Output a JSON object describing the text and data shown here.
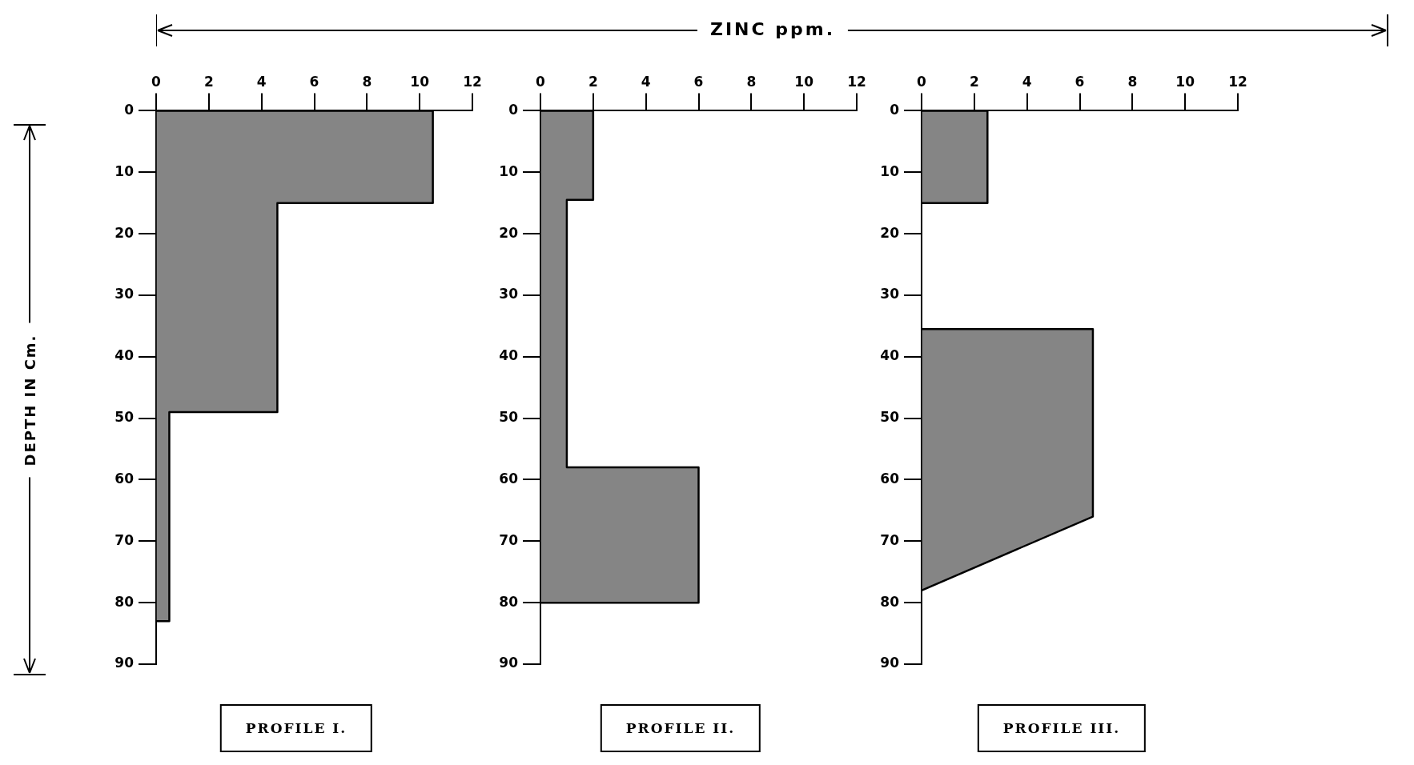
{
  "chart_data": [
    {
      "type": "area",
      "title": "PROFILE I.",
      "ylabel": "DEPTH IN Cm.",
      "xlim": [
        0,
        12
      ],
      "xticks": [
        0,
        2,
        4,
        6,
        8,
        10,
        12
      ],
      "ylim": [
        90,
        0
      ],
      "yticks": [
        0,
        10,
        20,
        30,
        40,
        50,
        60,
        70,
        80,
        90
      ],
      "grid": false,
      "marker": "none",
      "series": [
        {
          "color": "#333333",
          "x": [
            0,
            10.5,
            10.5,
            4.6,
            4.6,
            0.5,
            0.5,
            0
          ],
          "values": [
            0,
            0,
            15,
            15,
            49,
            49,
            83,
            83
          ]
        }
      ]
    },
    {
      "type": "area",
      "title": "PROFILE II.",
      "xlabel": "ZINC ppm.",
      "xlim": [
        0,
        12
      ],
      "xticks": [
        0,
        2,
        4,
        6,
        8,
        10,
        12
      ],
      "ylim": [
        90,
        0
      ],
      "yticks": [
        0,
        10,
        20,
        30,
        40,
        50,
        60,
        70,
        80,
        90
      ],
      "grid": false,
      "marker": "none",
      "series": [
        {
          "color": "#333333",
          "x": [
            0,
            2,
            2,
            1,
            1,
            6,
            6,
            0
          ],
          "values": [
            0,
            0,
            14.5,
            14.5,
            58,
            58,
            80,
            80
          ]
        }
      ]
    },
    {
      "type": "area",
      "title": "PROFILE III.",
      "xlim": [
        0,
        12
      ],
      "xticks": [
        0,
        2,
        4,
        6,
        8,
        10,
        12
      ],
      "ylim": [
        90,
        0
      ],
      "yticks": [
        0,
        10,
        20,
        30,
        40,
        50,
        60,
        70,
        80,
        90
      ],
      "grid": false,
      "marker": "none",
      "series": [
        {
          "color": "#333333",
          "x": [
            0,
            2.5,
            2.5,
            0
          ],
          "values": [
            0,
            0,
            15,
            15
          ]
        },
        {
          "color": "#333333",
          "x": [
            0,
            6.5,
            6.5,
            0
          ],
          "values": [
            35.5,
            35.5,
            66,
            78
          ]
        }
      ]
    }
  ]
}
